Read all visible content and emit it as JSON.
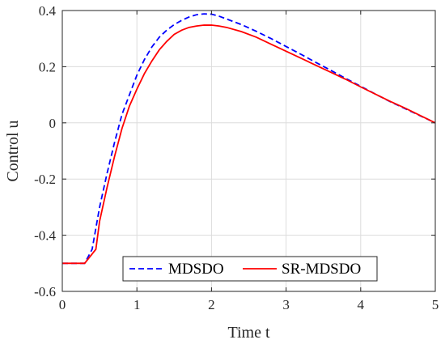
{
  "chart_data": {
    "type": "line",
    "xlabel": "Time t",
    "ylabel": "Control u",
    "xlim": [
      0,
      5
    ],
    "ylim": [
      -0.6,
      0.4
    ],
    "xticks": [
      0,
      1,
      2,
      3,
      4,
      5
    ],
    "yticks": [
      -0.6,
      -0.4,
      -0.2,
      0,
      0.2,
      0.4
    ],
    "xtick_labels": [
      "0",
      "1",
      "2",
      "3",
      "4",
      "5"
    ],
    "ytick_labels": [
      "-0.6",
      "-0.4",
      "-0.2",
      "0",
      "0.2",
      "0.4"
    ],
    "grid": true,
    "legend_position": "bottom-center",
    "series": [
      {
        "name": "MDSDO",
        "color": "#0000ff",
        "dash": "dashed",
        "x": [
          0,
          0.3,
          0.4,
          0.5,
          0.6,
          0.7,
          0.8,
          0.9,
          1.0,
          1.1,
          1.2,
          1.3,
          1.4,
          1.5,
          1.6,
          1.7,
          1.8,
          1.9,
          2.0,
          2.1,
          2.2,
          2.4,
          2.6,
          2.8,
          3.0,
          3.2,
          3.4,
          3.6,
          3.8,
          4.0,
          4.2,
          4.4,
          4.6,
          4.8,
          5.0
        ],
        "y": [
          -0.5,
          -0.5,
          -0.45,
          -0.3,
          -0.18,
          -0.07,
          0.03,
          0.1,
          0.17,
          0.225,
          0.27,
          0.305,
          0.33,
          0.35,
          0.365,
          0.377,
          0.385,
          0.388,
          0.387,
          0.38,
          0.37,
          0.35,
          0.326,
          0.3,
          0.272,
          0.244,
          0.215,
          0.187,
          0.158,
          0.13,
          0.102,
          0.075,
          0.05,
          0.025,
          0.0
        ]
      },
      {
        "name": "SR-MDSDO",
        "color": "#ff0000",
        "dash": "solid",
        "x": [
          0,
          0.3,
          0.45,
          0.5,
          0.6,
          0.7,
          0.8,
          0.9,
          1.0,
          1.1,
          1.2,
          1.3,
          1.4,
          1.5,
          1.6,
          1.7,
          1.8,
          1.9,
          2.0,
          2.1,
          2.2,
          2.4,
          2.6,
          2.8,
          3.0,
          3.2,
          3.4,
          3.6,
          3.8,
          4.0,
          4.2,
          4.4,
          4.6,
          4.8,
          5.0
        ],
        "y": [
          -0.5,
          -0.5,
          -0.45,
          -0.35,
          -0.23,
          -0.12,
          -0.02,
          0.06,
          0.12,
          0.175,
          0.22,
          0.26,
          0.29,
          0.315,
          0.33,
          0.34,
          0.345,
          0.348,
          0.348,
          0.345,
          0.34,
          0.325,
          0.305,
          0.28,
          0.255,
          0.23,
          0.205,
          0.18,
          0.155,
          0.128,
          0.102,
          0.076,
          0.052,
          0.026,
          0.0
        ]
      }
    ]
  }
}
